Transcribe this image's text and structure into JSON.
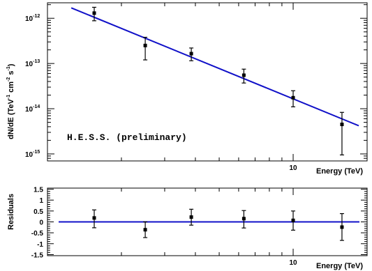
{
  "chart_data": [
    {
      "type": "scatter",
      "xlabel": "Energy (TeV)",
      "ylabel": "dN/dE (TeV^-1 cm^-2 s^-1)",
      "ylabel_parts": {
        "a": "dN/dE (TeV",
        "ea": "-1",
        "b": " cm",
        "eb": "-2",
        "c": " s",
        "ec": "-1",
        "d": ")"
      },
      "x_scale": "log",
      "y_scale": "log",
      "xlim": [
        1.0,
        20.0
      ],
      "ylim": [
        7e-16,
        2.2e-12
      ],
      "x_tick_labels": [
        {
          "value": 10,
          "label": "10"
        }
      ],
      "y_tick_labels": [
        {
          "value": 1e-12,
          "base": "10",
          "exp": "-12"
        },
        {
          "value": 1e-13,
          "base": "10",
          "exp": "-13"
        },
        {
          "value": 1e-14,
          "base": "10",
          "exp": "-14"
        },
        {
          "value": 1e-15,
          "base": "10",
          "exp": "-15"
        }
      ],
      "annotation": "H.E.S.S. (preliminary)",
      "grid": false,
      "fit_line": {
        "x": [
          1.25,
          18.5
        ],
        "y": [
          1.7e-12,
          4.2e-15
        ],
        "color": "#1010c8"
      },
      "points": [
        {
          "x": 1.55,
          "y": 1.3e-12,
          "ylow": 8.8e-13,
          "yhigh": 1.75e-12
        },
        {
          "x": 2.5,
          "y": 2.5e-13,
          "ylow": 1.2e-13,
          "yhigh": 3.8e-13
        },
        {
          "x": 3.85,
          "y": 1.65e-13,
          "ylow": 1.15e-13,
          "yhigh": 2.2e-13
        },
        {
          "x": 6.3,
          "y": 5.5e-14,
          "ylow": 3.7e-14,
          "yhigh": 7.5e-14
        },
        {
          "x": 10.0,
          "y": 1.75e-14,
          "ylow": 1.1e-14,
          "yhigh": 2.5e-14
        },
        {
          "x": 15.8,
          "y": 4.5e-15,
          "ylow": 9.5e-16,
          "yhigh": 8.3e-15
        }
      ]
    },
    {
      "type": "scatter",
      "xlabel": "Energy (TeV)",
      "ylabel": "Residuals",
      "x_scale": "log",
      "xlim": [
        1.0,
        20.0
      ],
      "ylim": [
        -1.55,
        1.55
      ],
      "x_tick_labels": [
        {
          "value": 10,
          "label": "10"
        }
      ],
      "y_tick_labels": [
        {
          "value": 1.5,
          "label": "1.5"
        },
        {
          "value": 1,
          "label": "1"
        },
        {
          "value": 0.5,
          "label": "0.5"
        },
        {
          "value": 0,
          "label": "0"
        },
        {
          "value": -0.5,
          "label": "-0.5"
        },
        {
          "value": -1,
          "label": "-1"
        },
        {
          "value": -1.5,
          "label": "-1.5"
        }
      ],
      "grid": false,
      "zero_line": {
        "y": 0,
        "color": "#1010c8"
      },
      "points": [
        {
          "x": 1.55,
          "y": 0.18,
          "ylow": -0.27,
          "yhigh": 0.55
        },
        {
          "x": 2.5,
          "y": -0.36,
          "ylow": -0.72,
          "yhigh": 0.0
        },
        {
          "x": 3.85,
          "y": 0.22,
          "ylow": -0.15,
          "yhigh": 0.58
        },
        {
          "x": 6.3,
          "y": 0.15,
          "ylow": -0.28,
          "yhigh": 0.52
        },
        {
          "x": 10.0,
          "y": 0.07,
          "ylow": -0.38,
          "yhigh": 0.5
        },
        {
          "x": 15.8,
          "y": -0.24,
          "ylow": -0.85,
          "yhigh": 0.38
        }
      ]
    }
  ]
}
